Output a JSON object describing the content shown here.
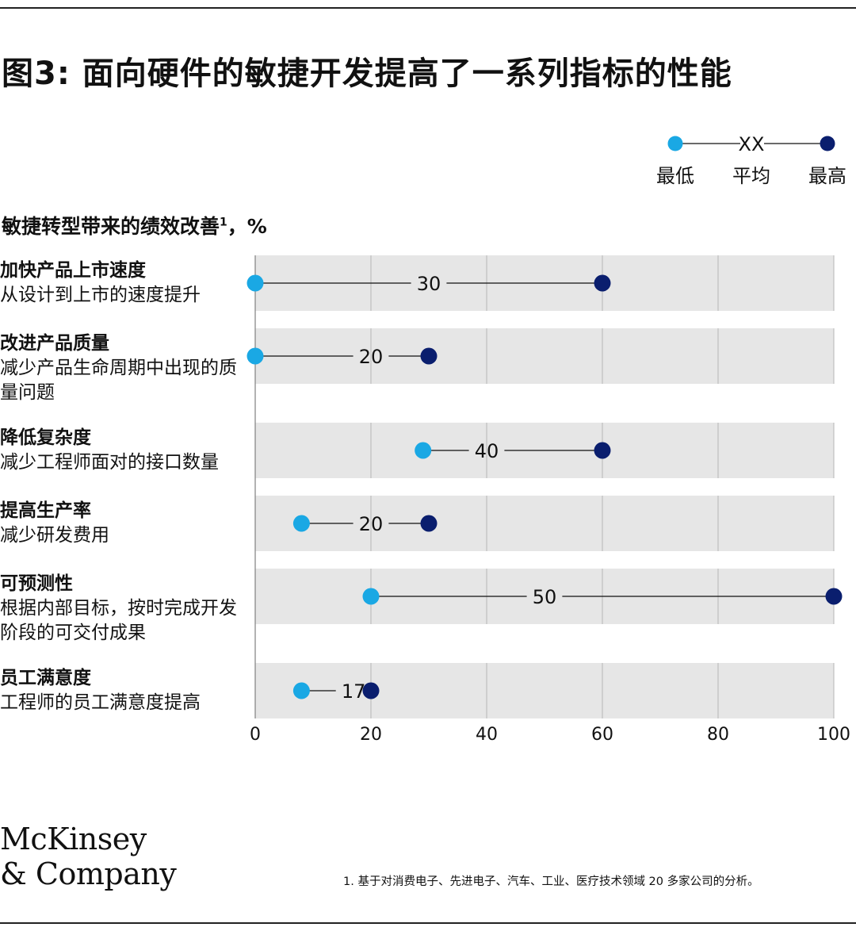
{
  "title": "图3: 面向硬件的敏捷开发提高了一系列指标的性能",
  "legend": {
    "avg": "XX",
    "low": "最低",
    "mid": "平均",
    "high": "最高"
  },
  "subtitle": {
    "text": "敏捷转型带来的绩效改善",
    "sup": "1",
    "tail": "，%"
  },
  "colors": {
    "low": "#1aa8e4",
    "high": "#0a1e6e",
    "band": "#e6e6e6",
    "grid": "#b5b5b5"
  },
  "chart_data": {
    "type": "dumbbell",
    "xlim": [
      0,
      100
    ],
    "xticks": [
      "0",
      "20",
      "40",
      "60",
      "80",
      "100"
    ],
    "metrics": [
      {
        "title": "加快产品上市速度",
        "desc": "从设计到上市的速度提升",
        "low": 0,
        "high": 60,
        "avg": 30
      },
      {
        "title": "改进产品质量",
        "desc": "减少产品生命周期中出现的质量问题",
        "low": 0,
        "high": 30,
        "avg": 20
      },
      {
        "title": "降低复杂度",
        "desc": "减少工程师面对的接口数量",
        "low": 29,
        "high": 60,
        "avg": 40
      },
      {
        "title": "提高生产率",
        "desc": "减少研发费用",
        "low": 8,
        "high": 30,
        "avg": 20
      },
      {
        "title": "可预测性",
        "desc": "根据内部目标，按时完成开发阶段的可交付成果",
        "low": 20,
        "high": 100,
        "avg": 50
      },
      {
        "title": "员工满意度",
        "desc": "工程师的员工满意度提高",
        "low": 8,
        "high": 20,
        "avg": 17
      }
    ]
  },
  "logo": {
    "line1": "McKinsey",
    "line2": "& Company"
  },
  "footnote": "1.    基于对消费电子、先进电子、汽车、工业、医疗技术领域 20 多家公司的分析。"
}
